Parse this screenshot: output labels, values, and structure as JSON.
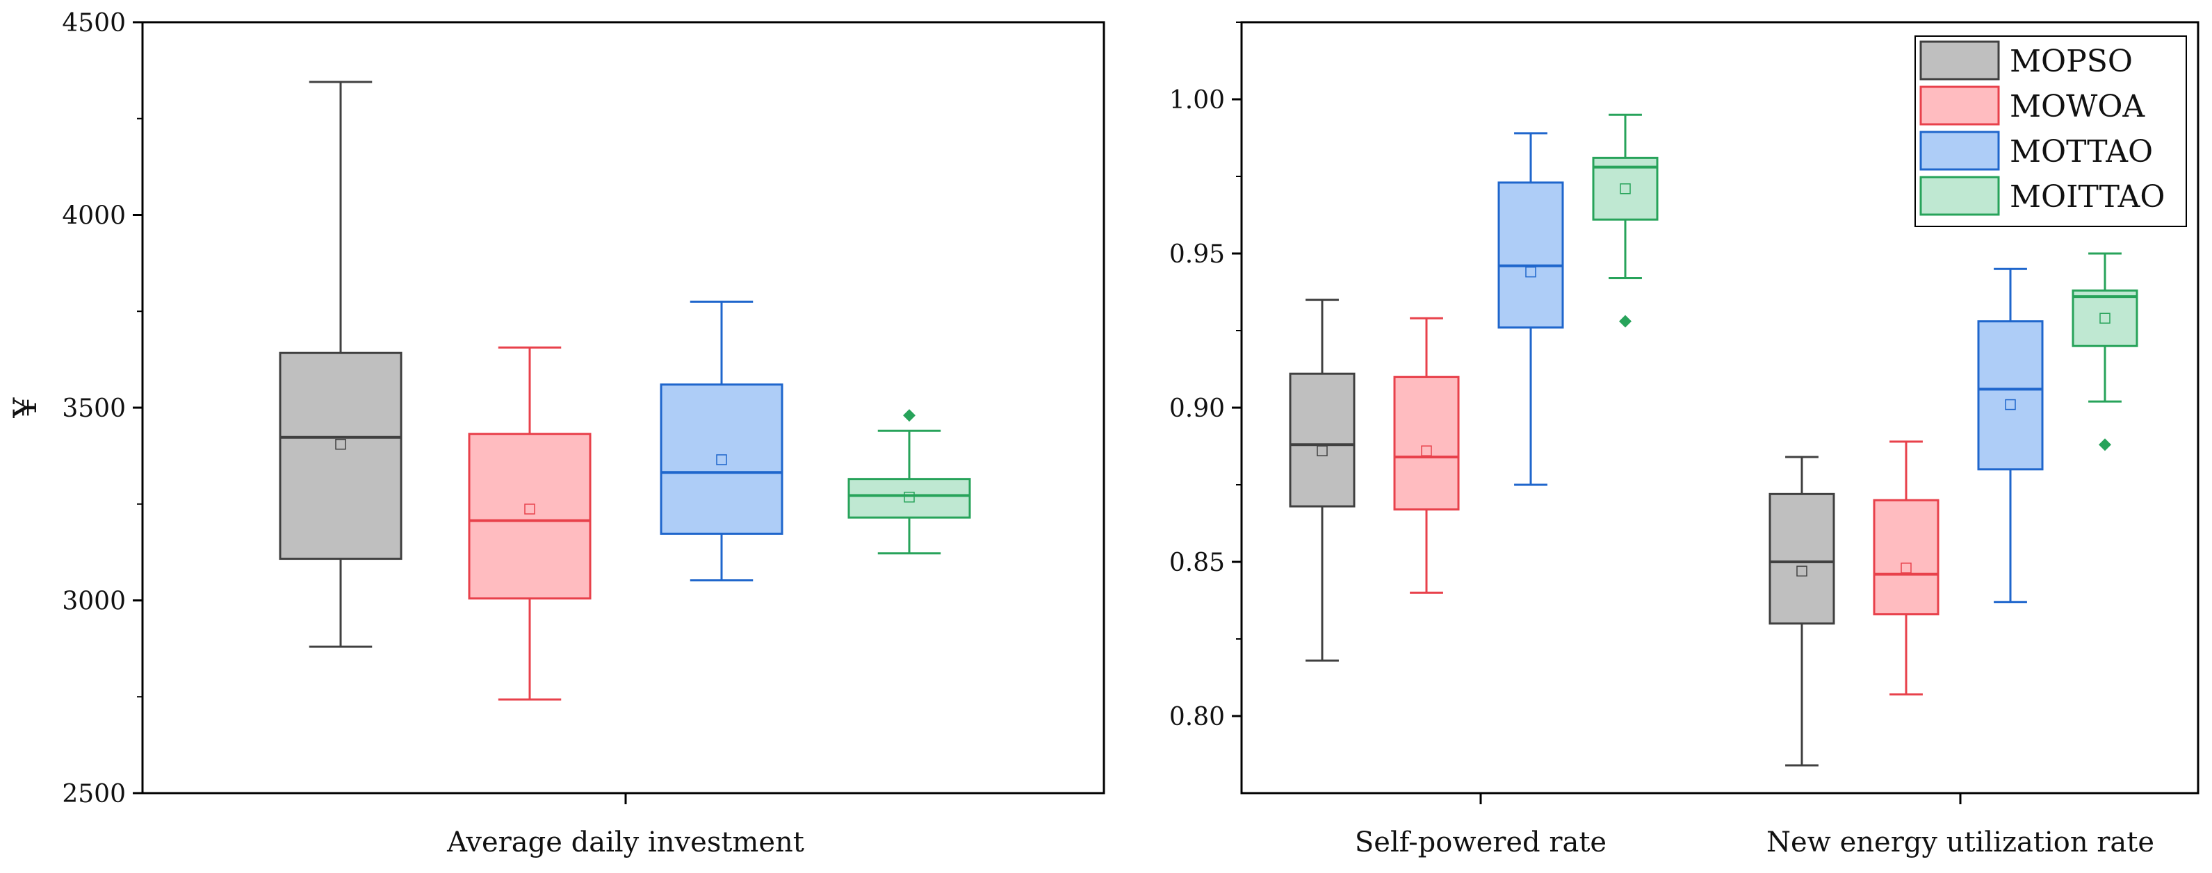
{
  "chart_data": [
    {
      "type": "box",
      "title": "",
      "xlabel": "",
      "ylabel": "¥",
      "ylim": [
        2500,
        4500
      ],
      "yticks": [
        2500,
        3000,
        3500,
        4000,
        4500
      ],
      "categories": [
        "Average daily investment"
      ],
      "series": [
        {
          "name": "MOPSO",
          "color": "#404040",
          "fill": "#bfbfbf",
          "boxes": [
            {
              "min": 2880,
              "q1": 3108,
              "median": 3423,
              "q3": 3642,
              "max": 4345,
              "mean": 3405
            }
          ],
          "outliers": [
            []
          ]
        },
        {
          "name": "MOWOA",
          "color": "#e8414b",
          "fill": "#ffbcc0",
          "boxes": [
            {
              "min": 2743,
              "q1": 3005,
              "median": 3207,
              "q3": 3432,
              "max": 3656,
              "mean": 3237
            }
          ],
          "outliers": [
            []
          ]
        },
        {
          "name": "MOTTAO",
          "color": "#1f66cc",
          "fill": "#aecdf7",
          "boxes": [
            {
              "min": 3052,
              "q1": 3173,
              "median": 3332,
              "q3": 3560,
              "max": 3775,
              "mean": 3365
            }
          ],
          "outliers": [
            []
          ]
        },
        {
          "name": "MOITTAO",
          "color": "#27a35a",
          "fill": "#bfe8d2",
          "boxes": [
            {
              "min": 3122,
              "q1": 3215,
              "median": 3272,
              "q3": 3315,
              "max": 3440,
              "mean": 3268
            }
          ],
          "outliers": [
            [
              3480
            ]
          ]
        }
      ]
    },
    {
      "type": "box",
      "title": "",
      "xlabel": "",
      "ylabel": "",
      "ylim": [
        0.775,
        1.025
      ],
      "yticks": [
        0.8,
        0.85,
        0.9,
        0.95,
        1.0
      ],
      "ytick_labels": [
        "0.80",
        "0.85",
        "0.90",
        "0.95",
        "1.00"
      ],
      "categories": [
        "Self-powered rate",
        "New energy utilization rate"
      ],
      "legend_position": "top-right",
      "series": [
        {
          "name": "MOPSO",
          "color": "#404040",
          "fill": "#bfbfbf",
          "boxes": [
            {
              "min": 0.818,
              "q1": 0.868,
              "median": 0.888,
              "q3": 0.911,
              "max": 0.935,
              "mean": 0.886
            },
            {
              "min": 0.784,
              "q1": 0.83,
              "median": 0.85,
              "q3": 0.872,
              "max": 0.884,
              "mean": 0.847
            }
          ],
          "outliers": [
            [],
            []
          ]
        },
        {
          "name": "MOWOA",
          "color": "#e8414b",
          "fill": "#ffbcc0",
          "boxes": [
            {
              "min": 0.84,
              "q1": 0.867,
              "median": 0.884,
              "q3": 0.91,
              "max": 0.929,
              "mean": 0.886
            },
            {
              "min": 0.807,
              "q1": 0.833,
              "median": 0.846,
              "q3": 0.87,
              "max": 0.889,
              "mean": 0.848
            }
          ],
          "outliers": [
            [],
            []
          ]
        },
        {
          "name": "MOTTAO",
          "color": "#1f66cc",
          "fill": "#aecdf7",
          "boxes": [
            {
              "min": 0.875,
              "q1": 0.926,
              "median": 0.946,
              "q3": 0.973,
              "max": 0.989,
              "mean": 0.944
            },
            {
              "min": 0.837,
              "q1": 0.88,
              "median": 0.906,
              "q3": 0.928,
              "max": 0.945,
              "mean": 0.901
            }
          ],
          "outliers": [
            [],
            []
          ]
        },
        {
          "name": "MOITTAO",
          "color": "#27a35a",
          "fill": "#bfe8d2",
          "boxes": [
            {
              "min": 0.942,
              "q1": 0.961,
              "median": 0.978,
              "q3": 0.981,
              "max": 0.995,
              "mean": 0.971
            },
            {
              "min": 0.902,
              "q1": 0.92,
              "median": 0.936,
              "q3": 0.938,
              "max": 0.95,
              "mean": 0.929
            }
          ],
          "outliers": [
            [
              0.928
            ],
            [
              0.888
            ]
          ]
        }
      ]
    }
  ]
}
